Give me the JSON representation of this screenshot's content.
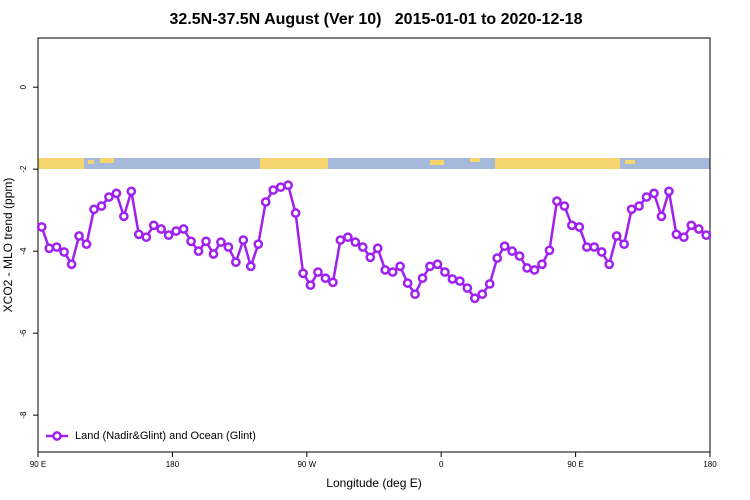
{
  "chart_data": {
    "type": "line",
    "title": "32.5N-37.5N August (Ver 10)   2015-01-01 to 2020-12-18",
    "xlabel": "Longitude (deg E)",
    "ylabel": "XCO2 - MLO trend (ppm)",
    "x": [
      92.5,
      97.5,
      102.5,
      107.5,
      112.5,
      117.5,
      122.5,
      127.5,
      132.5,
      137.5,
      142.5,
      147.5,
      152.5,
      157.5,
      162.5,
      167.5,
      172.5,
      177.5,
      182.5,
      187.5,
      192.5,
      197.5,
      202.5,
      207.5,
      212.5,
      217.5,
      222.5,
      227.5,
      232.5,
      237.5,
      242.5,
      247.5,
      252.5,
      257.5,
      262.5,
      267.5,
      272.5,
      277.5,
      282.5,
      287.5,
      292.5,
      297.5,
      302.5,
      307.5,
      312.5,
      317.5,
      322.5,
      327.5,
      332.5,
      337.5,
      342.5,
      347.5,
      352.5,
      357.5,
      362.5,
      367.5,
      372.5,
      377.5,
      382.5,
      387.5,
      392.5,
      397.5,
      402.5,
      407.5,
      412.5,
      417.5,
      422.5,
      427.5,
      432.5,
      437.5,
      442.5,
      447.5,
      452.5,
      457.5,
      462.5,
      467.5,
      472.5,
      477.5,
      482.5,
      487.5,
      492.5,
      497.5,
      502.5,
      507.5,
      512.5,
      517.5,
      522.5,
      527.5,
      532.5,
      537.5
    ],
    "series": [
      {
        "name": "Land (Nadir&Glint) and Ocean (Glint)",
        "color": "#a020f0",
        "values": [
          -3.41,
          -3.93,
          -3.9,
          -4.02,
          -4.32,
          -3.63,
          -3.83,
          -2.98,
          -2.9,
          -2.68,
          -2.59,
          -3.15,
          -2.54,
          -3.59,
          -3.66,
          -3.37,
          -3.46,
          -3.61,
          -3.51,
          -3.46,
          -3.76,
          -4.0,
          -3.76,
          -4.07,
          -3.78,
          -3.9,
          -4.27,
          -3.73,
          -4.37,
          -3.83,
          -2.8,
          -2.51,
          -2.44,
          -2.39,
          -3.07,
          -4.54,
          -4.83,
          -4.51,
          -4.66,
          -4.76,
          -3.73,
          -3.66,
          -3.78,
          -3.9,
          -4.15,
          -3.93,
          -4.46,
          -4.51,
          -4.37,
          -4.78,
          -5.05,
          -4.66,
          -4.37,
          -4.32,
          -4.51,
          -4.68,
          -4.73,
          -4.9,
          -5.15,
          -5.05,
          -4.8,
          -4.17,
          -3.88,
          -4.0,
          -4.12,
          -4.41,
          -4.46,
          -4.32,
          -3.98,
          -2.78,
          -2.9,
          -3.37,
          -3.41,
          -3.9,
          -3.9,
          -4.02,
          -4.32,
          -3.63,
          -3.83,
          -2.98,
          -2.9,
          -2.68,
          -2.59,
          -3.15,
          -2.54,
          -3.59,
          -3.66,
          -3.37,
          -3.46,
          -3.61
        ]
      }
    ],
    "xlim": [
      90,
      540
    ],
    "xticks": [
      {
        "value": 90,
        "label": "90 E"
      },
      180,
      {
        "value": 270,
        "label": "90 W"
      },
      {
        "value": 360,
        "label": "0"
      },
      {
        "value": 450,
        "label": "90 E"
      },
      {
        "value": 540,
        "label": "180"
      }
    ],
    "ylim": [
      -8.9,
      1.2
    ],
    "yticks": [
      0,
      -2,
      -4,
      -6,
      -8
    ],
    "legend": "bottom-left"
  }
}
